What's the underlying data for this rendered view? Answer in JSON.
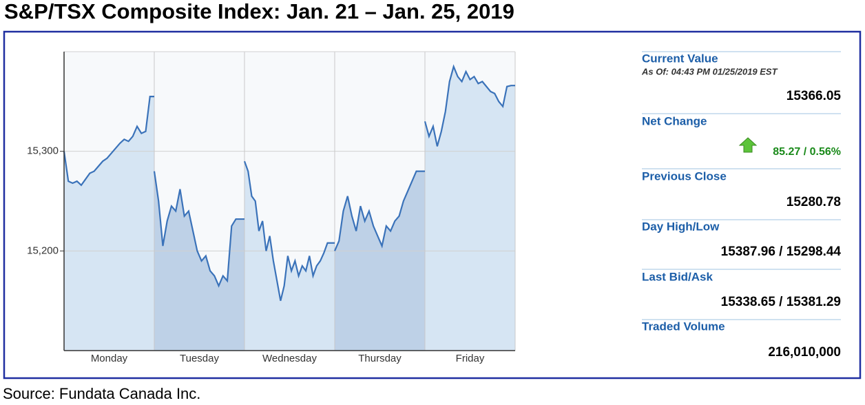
{
  "title": "S&P/TSX Composite Index: Jan. 21 – Jan. 25, 2019",
  "source": "Source: Fundata Canada Inc.",
  "chart_data": {
    "type": "line",
    "categories": [
      "Monday",
      "Tuesday",
      "Wednesday",
      "Thursday",
      "Friday"
    ],
    "values": [
      [
        15300,
        15270,
        15268,
        15270,
        15266,
        15272,
        15278,
        15280,
        15285,
        15290,
        15293,
        15298,
        15303,
        15308,
        15312,
        15310,
        15315,
        15325,
        15318,
        15320,
        15355,
        15355
      ],
      [
        15280,
        15250,
        15205,
        15230,
        15245,
        15240,
        15262,
        15235,
        15240,
        15220,
        15200,
        15190,
        15195,
        15180,
        15175,
        15165,
        15175,
        15170,
        15225,
        15232,
        15232,
        15232
      ],
      [
        15290,
        15280,
        15255,
        15250,
        15220,
        15230,
        15200,
        15215,
        15190,
        15170,
        15150,
        15165,
        15195,
        15180,
        15190,
        15175,
        15185,
        15180,
        15195,
        15175,
        15185,
        15190,
        15198,
        15208,
        15208,
        15208
      ],
      [
        15200,
        15210,
        15240,
        15255,
        15235,
        15220,
        15245,
        15230,
        15240,
        15225,
        15215,
        15205,
        15225,
        15220,
        15230,
        15235,
        15250,
        15260,
        15270,
        15280,
        15280,
        15280
      ],
      [
        15330,
        15315,
        15325,
        15305,
        15320,
        15340,
        15370,
        15385,
        15375,
        15370,
        15380,
        15372,
        15375,
        15368,
        15370,
        15365,
        15360,
        15358,
        15350,
        15345,
        15365,
        15366,
        15366
      ]
    ],
    "color": "#3a72b9",
    "fill_colors": [
      "#d6e5f3",
      "#bed1e7",
      "#d6e5f3",
      "#bed1e7",
      "#d6e5f3"
    ],
    "ylim": [
      15100,
      15400
    ],
    "yticks": [
      {
        "value": 15200,
        "label": "15,200"
      },
      {
        "value": 15300,
        "label": "15,300"
      }
    ],
    "grid": true
  },
  "panel": {
    "current_value": {
      "label": "Current Value",
      "note": "As Of: 04:43 PM 01/25/2019 EST",
      "value": "15366.05"
    },
    "net_change": {
      "label": "Net Change",
      "value": "85.27 / 0.56%"
    },
    "previous_close": {
      "label": "Previous Close",
      "value": "15280.78"
    },
    "day_high_low": {
      "label": "Day High/Low",
      "value": "15387.96 / 15298.44"
    },
    "last_bid_ask": {
      "label": "Last Bid/Ask",
      "value": "15338.65 / 15381.29"
    },
    "traded_volume": {
      "label": "Traded Volume",
      "value": "216,010,000"
    }
  }
}
